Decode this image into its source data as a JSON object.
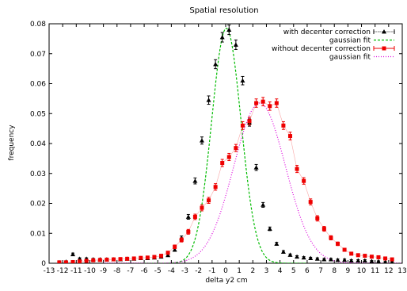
{
  "chart_data": {
    "type": "scatter",
    "title": "Spatial resolution",
    "xlabel": "delta y2 cm",
    "ylabel": "frequency",
    "xlim": [
      -13,
      13
    ],
    "ylim": [
      0,
      0.08
    ],
    "xticks": [
      -13,
      -12,
      -11,
      -10,
      -9,
      -8,
      -7,
      -6,
      -5,
      -4,
      -3,
      -2,
      -1,
      0,
      1,
      2,
      3,
      4,
      5,
      6,
      7,
      8,
      9,
      10,
      11,
      12,
      13
    ],
    "yticks": [
      0,
      0.01,
      0.02,
      0.03,
      0.04,
      0.05,
      0.06,
      0.07,
      0.08
    ],
    "ytick_labels": [
      "0",
      "0.01",
      "0.02",
      "0.03",
      "0.04",
      "0.05",
      "0.06",
      "0.07",
      "0.08"
    ],
    "grid": false,
    "legend_position": "top-right",
    "series": [
      {
        "name": "with decenter correction",
        "kind": "points-errorbars",
        "color": "#000000",
        "marker": "triangle",
        "x": [
          -12.25,
          -11.75,
          -11.25,
          -10.75,
          -10.25,
          -9.75,
          -9.25,
          -8.75,
          -8.25,
          -7.75,
          -7.25,
          -6.75,
          -6.25,
          -5.75,
          -5.25,
          -4.75,
          -4.25,
          -3.75,
          -3.25,
          -2.75,
          -2.25,
          -1.75,
          -1.25,
          -0.75,
          -0.25,
          0.25,
          0.75,
          1.25,
          1.75,
          2.25,
          2.75,
          3.25,
          3.75,
          4.25,
          4.75,
          5.25,
          5.75,
          6.25,
          6.75,
          7.25,
          7.75,
          8.25,
          8.75,
          9.25,
          9.75,
          10.25,
          10.75,
          11.25,
          11.75,
          12.25
        ],
        "y": [
          0.0003,
          0.0005,
          0.003,
          0.0015,
          0.0015,
          0.0013,
          0.0013,
          0.0013,
          0.0013,
          0.0013,
          0.0015,
          0.0015,
          0.0017,
          0.0017,
          0.0019,
          0.0022,
          0.0027,
          0.0045,
          0.0085,
          0.0155,
          0.0275,
          0.041,
          0.0545,
          0.0665,
          0.0755,
          0.078,
          0.073,
          0.061,
          0.047,
          0.032,
          0.0195,
          0.0115,
          0.0065,
          0.0038,
          0.0028,
          0.0022,
          0.0019,
          0.0017,
          0.0015,
          0.0013,
          0.0013,
          0.0011,
          0.0011,
          0.0009,
          0.0009,
          0.0009,
          0.0007,
          0.0006,
          0.0004,
          0.0003
        ],
        "yerr": [
          0.0002,
          0.0002,
          0.0004,
          0.0003,
          0.0003,
          0.0003,
          0.0003,
          0.0003,
          0.0003,
          0.0003,
          0.0003,
          0.0003,
          0.0003,
          0.0003,
          0.0003,
          0.0003,
          0.0004,
          0.0005,
          0.0006,
          0.0008,
          0.001,
          0.0012,
          0.0014,
          0.0015,
          0.0016,
          0.0016,
          0.0016,
          0.0014,
          0.0012,
          0.001,
          0.0008,
          0.0006,
          0.0005,
          0.0004,
          0.0003,
          0.0003,
          0.0003,
          0.0003,
          0.0003,
          0.0003,
          0.0003,
          0.0003,
          0.0003,
          0.0003,
          0.0003,
          0.0003,
          0.0002,
          0.0002,
          0.0002,
          0.0002
        ]
      },
      {
        "name": "gaussian fit",
        "kind": "gaussian",
        "color": "#00bb00",
        "dash": "3,2",
        "amplitude": 0.0785,
        "mean": 0.05,
        "sigma": 1.08,
        "xrange": [
          -6,
          6
        ]
      },
      {
        "name": "without decenter correction",
        "kind": "points-errorbars-line",
        "color": "#ee0000",
        "marker": "square",
        "x": [
          -12.25,
          -11.75,
          -11.25,
          -10.75,
          -10.25,
          -9.75,
          -9.25,
          -8.75,
          -8.25,
          -7.75,
          -7.25,
          -6.75,
          -6.25,
          -5.75,
          -5.25,
          -4.75,
          -4.25,
          -3.75,
          -3.25,
          -2.75,
          -2.25,
          -1.75,
          -1.25,
          -0.75,
          -0.25,
          0.25,
          0.75,
          1.25,
          1.75,
          2.25,
          2.75,
          3.25,
          3.75,
          4.25,
          4.75,
          5.25,
          5.75,
          6.25,
          6.75,
          7.25,
          7.75,
          8.25,
          8.75,
          9.25,
          9.75,
          10.25,
          10.75,
          11.25,
          11.75,
          12.25
        ],
        "y": [
          0.0003,
          0.0003,
          0.0004,
          0.0006,
          0.0008,
          0.001,
          0.0011,
          0.0012,
          0.0013,
          0.0014,
          0.0015,
          0.0016,
          0.0018,
          0.0019,
          0.0021,
          0.0025,
          0.0035,
          0.0055,
          0.0078,
          0.0105,
          0.0155,
          0.0185,
          0.021,
          0.0255,
          0.0335,
          0.0355,
          0.0385,
          0.046,
          0.0475,
          0.0535,
          0.054,
          0.0525,
          0.0535,
          0.046,
          0.0425,
          0.0315,
          0.0275,
          0.0205,
          0.015,
          0.0115,
          0.0085,
          0.0065,
          0.0045,
          0.0032,
          0.0027,
          0.0025,
          0.0022,
          0.002,
          0.0016,
          0.0013
        ],
        "yerr": [
          0.0002,
          0.0002,
          0.0002,
          0.0003,
          0.0003,
          0.0003,
          0.0003,
          0.0003,
          0.0003,
          0.0003,
          0.0003,
          0.0003,
          0.0004,
          0.0004,
          0.0004,
          0.0004,
          0.0005,
          0.0006,
          0.0007,
          0.0008,
          0.0009,
          0.001,
          0.001,
          0.0011,
          0.0012,
          0.0012,
          0.0012,
          0.0013,
          0.0013,
          0.0014,
          0.0014,
          0.0014,
          0.0014,
          0.0013,
          0.0013,
          0.0012,
          0.0011,
          0.001,
          0.0009,
          0.0008,
          0.0007,
          0.0006,
          0.0005,
          0.0004,
          0.0004,
          0.0004,
          0.0003,
          0.0003,
          0.0003,
          0.0003
        ]
      },
      {
        "name": "gaussian fit",
        "kind": "gaussian",
        "color": "#dd00dd",
        "dash": "1,2",
        "amplitude": 0.0535,
        "mean": 2.5,
        "sigma": 1.9,
        "xrange": [
          -9,
          13
        ]
      }
    ]
  }
}
